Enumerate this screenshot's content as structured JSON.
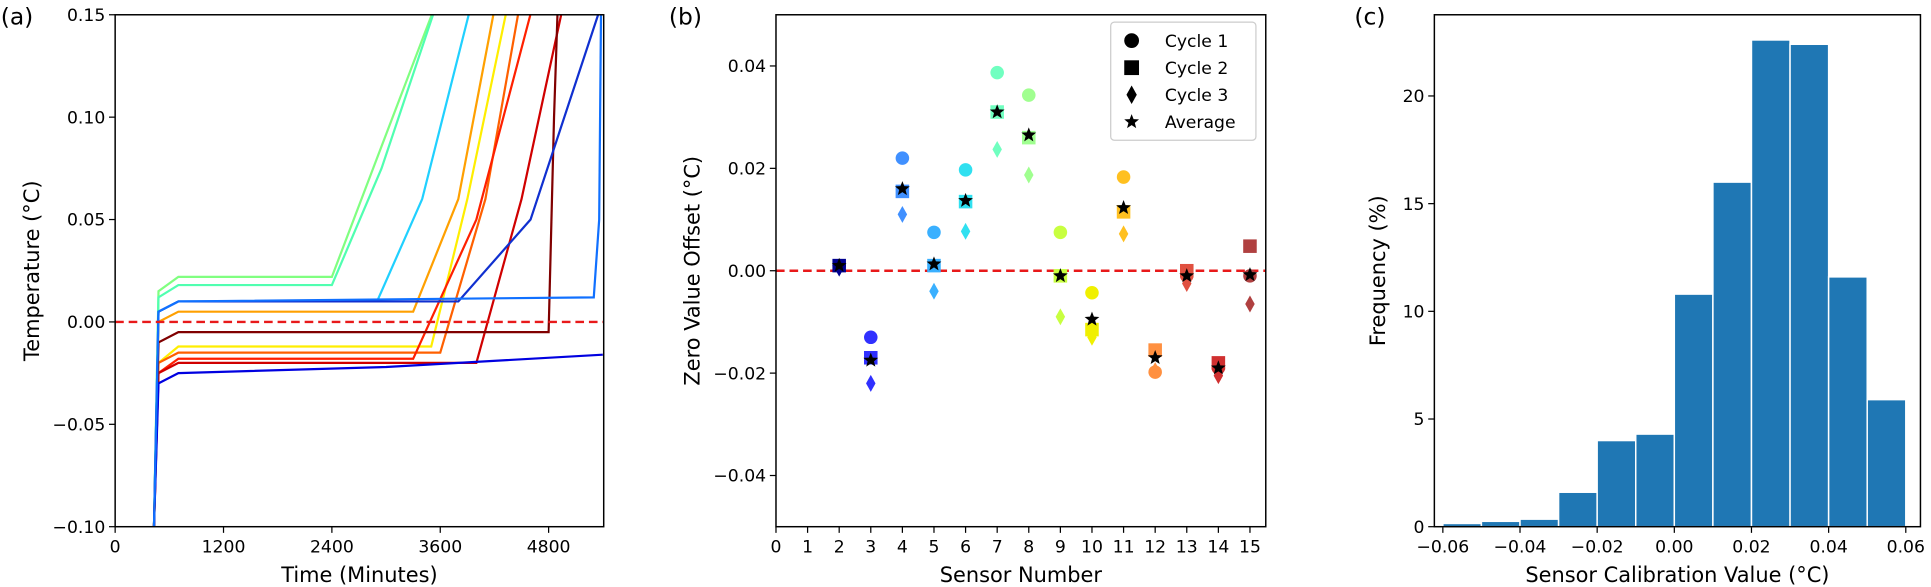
{
  "chart_data": [
    {
      "type": "line",
      "panel_label": "(a)",
      "xlabel": "Time (Minutes)",
      "ylabel": "Temperature (°C)",
      "xlim": [
        0,
        5410
      ],
      "ylim": [
        -0.1,
        0.15
      ],
      "xticks": [
        0,
        1200,
        2400,
        3600,
        4800
      ],
      "yticks": [
        {
          "value": -0.1,
          "label": "−0.10"
        },
        {
          "value": -0.05,
          "label": "−0.05"
        },
        {
          "value": 0.0,
          "label": "0.00"
        },
        {
          "value": 0.05,
          "label": "0.05"
        },
        {
          "value": 0.1,
          "label": "0.10"
        },
        {
          "value": 0.15,
          "label": "0.15"
        }
      ],
      "hline": 0,
      "hline_color": "#e8191a",
      "series": [
        {
          "color": "#80ff80",
          "x": [
            430,
            480,
            700,
            2400,
            2900,
            3506
          ],
          "values": [
            -0.1,
            0.015,
            0.022,
            0.022,
            0.08,
            0.15
          ]
        },
        {
          "color": "#50ffb0",
          "x": [
            430,
            480,
            700,
            2400,
            2950,
            3520
          ],
          "values": [
            -0.1,
            0.012,
            0.018,
            0.018,
            0.075,
            0.15
          ]
        },
        {
          "color": "#20d0ff",
          "x": [
            430,
            480,
            700,
            2900,
            3400,
            3915
          ],
          "values": [
            -0.1,
            0.005,
            0.01,
            0.01,
            0.06,
            0.15
          ]
        },
        {
          "color": "#ffee00",
          "x": [
            430,
            480,
            700,
            3500,
            3900,
            4325
          ],
          "values": [
            -0.1,
            -0.02,
            -0.012,
            -0.012,
            0.06,
            0.15
          ]
        },
        {
          "color": "#ffa000",
          "x": [
            430,
            480,
            700,
            3300,
            3800,
            4188
          ],
          "values": [
            -0.1,
            0.0,
            0.005,
            0.005,
            0.06,
            0.15
          ]
        },
        {
          "color": "#ff6000",
          "x": [
            430,
            480,
            700,
            3600,
            4100,
            4461
          ],
          "values": [
            -0.1,
            -0.02,
            -0.015,
            -0.015,
            0.06,
            0.15
          ]
        },
        {
          "color": "#ff2000",
          "x": [
            430,
            480,
            700,
            3300,
            4000,
            4598
          ],
          "values": [
            -0.1,
            -0.025,
            -0.018,
            -0.018,
            0.05,
            0.15
          ]
        },
        {
          "color": "#d00000",
          "x": [
            430,
            480,
            700,
            4000,
            4500,
            4939
          ],
          "values": [
            -0.1,
            -0.025,
            -0.02,
            -0.02,
            0.06,
            0.15
          ]
        },
        {
          "color": "#800000",
          "x": [
            430,
            480,
            700,
            4800,
            4860,
            4898
          ],
          "values": [
            -0.1,
            -0.01,
            -0.005,
            -0.005,
            0.1,
            0.15
          ]
        },
        {
          "color": "#0000e0",
          "x": [
            430,
            480,
            700,
            3000,
            5400
          ],
          "values": [
            -0.1,
            -0.03,
            -0.025,
            -0.022,
            -0.016
          ]
        },
        {
          "color": "#1030d0",
          "x": [
            430,
            480,
            700,
            3800,
            4600,
            5348
          ],
          "values": [
            -0.1,
            0.005,
            0.01,
            0.01,
            0.05,
            0.15
          ]
        },
        {
          "color": "#1070ff",
          "x": [
            430,
            480,
            700,
            5300,
            5360,
            5380
          ],
          "values": [
            -0.1,
            0.005,
            0.01,
            0.012,
            0.05,
            0.15
          ]
        }
      ]
    },
    {
      "type": "scatter",
      "panel_label": "(b)",
      "xlabel": "Sensor Number",
      "ylabel": "Zero Value Offset (°C)",
      "xlim": [
        0,
        15.5
      ],
      "ylim": [
        -0.05,
        0.05
      ],
      "xticks": [
        0,
        1,
        2,
        3,
        4,
        5,
        6,
        7,
        8,
        9,
        10,
        11,
        12,
        13,
        14,
        15
      ],
      "yticks": [
        {
          "value": -0.04,
          "label": "−0.04"
        },
        {
          "value": -0.02,
          "label": "−0.02"
        },
        {
          "value": 0.0,
          "label": "0.00"
        },
        {
          "value": 0.02,
          "label": "0.02"
        },
        {
          "value": 0.04,
          "label": "0.04"
        }
      ],
      "hline": 0,
      "hline_color": "#e8191a",
      "legend": "upper right",
      "x": [
        2,
        3,
        4,
        5,
        6,
        7,
        8,
        9,
        10,
        11,
        12,
        13,
        14,
        15
      ],
      "point_colors": [
        "#00008f",
        "#3030ff",
        "#4090ff",
        "#3ab0ff",
        "#30e0f0",
        "#70ffc0",
        "#a0ff90",
        "#c8ff40",
        "#f0f000",
        "#ffc020",
        "#ff9040",
        "#e05040",
        "#d03030",
        "#b04040"
      ],
      "series": [
        {
          "name": "Cycle 1",
          "marker": "circle",
          "values": [
            0.001,
            -0.013,
            0.022,
            0.0075,
            0.0197,
            0.0387,
            0.0343,
            0.0075,
            -0.0043,
            0.0183,
            -0.0198,
            -0.001,
            -0.019,
            -0.001
          ]
        },
        {
          "name": "Cycle 2",
          "marker": "square",
          "values": [
            0.001,
            -0.017,
            0.0155,
            0.001,
            0.0135,
            0.031,
            0.026,
            -0.001,
            -0.0115,
            0.0115,
            -0.0155,
            0.0,
            -0.018,
            0.0048
          ]
        },
        {
          "name": "Cycle 3",
          "marker": "diamond",
          "values": [
            0.0005,
            -0.022,
            0.011,
            -0.004,
            0.0077,
            0.0237,
            0.0187,
            -0.009,
            -0.013,
            0.0072,
            -0.0195,
            -0.0025,
            -0.0205,
            -0.0065
          ]
        },
        {
          "name": "Average",
          "marker": "star",
          "color": "#000000",
          "values": [
            0.001,
            -0.0175,
            0.016,
            0.0013,
            0.0137,
            0.031,
            0.0265,
            -0.001,
            -0.0095,
            0.0123,
            -0.017,
            -0.001,
            -0.019,
            -0.0008
          ]
        }
      ]
    },
    {
      "type": "histogram",
      "panel_label": "(c)",
      "xlabel": "Sensor Calibration Value (°C)",
      "ylabel": "Frequency (%)",
      "xlim": [
        -0.0622,
        0.0638
      ],
      "ylim": [
        0,
        23.77
      ],
      "color": "#1f77b4",
      "xticks": [
        {
          "value": -0.06,
          "label": "−0.06"
        },
        {
          "value": -0.04,
          "label": "−0.04"
        },
        {
          "value": -0.02,
          "label": "−0.02"
        },
        {
          "value": 0.0,
          "label": "0.00"
        },
        {
          "value": 0.02,
          "label": "0.02"
        },
        {
          "value": 0.04,
          "label": "0.04"
        },
        {
          "value": 0.06,
          "label": "0.06"
        }
      ],
      "yticks": [
        0,
        5,
        10,
        15,
        20
      ],
      "bins": [
        -0.06,
        -0.05,
        -0.04,
        -0.03,
        -0.02,
        -0.01,
        0.0,
        0.01,
        0.02,
        0.03,
        0.04,
        0.05,
        0.06
      ],
      "values": [
        0.15,
        0.25,
        0.35,
        1.6,
        4.0,
        4.3,
        10.8,
        16.0,
        22.6,
        22.4,
        11.6,
        5.9
      ]
    }
  ]
}
